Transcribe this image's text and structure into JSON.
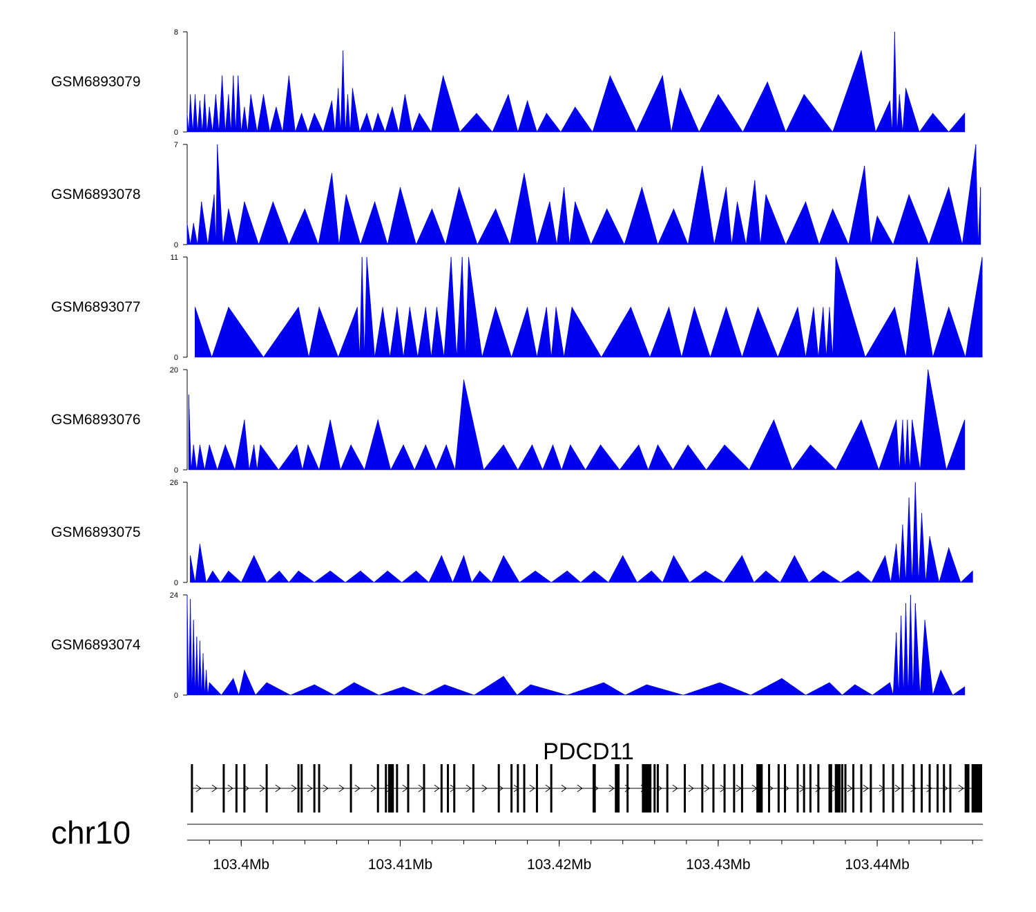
{
  "chart_data": {
    "type": "area",
    "title": "",
    "chromosome": "chr10",
    "region_mb": [
      103.3966,
      103.4466
    ],
    "xlabel": "",
    "x_ticks": [
      103.4,
      103.41,
      103.42,
      103.43,
      103.44
    ],
    "x_tick_labels": [
      "103.4Mb",
      "103.41Mb",
      "103.42Mb",
      "103.43Mb",
      "103.44Mb"
    ],
    "series_color": "#0000ee",
    "tracks": [
      {
        "name": "GSM6893079",
        "ymax": 8,
        "ymin": 0,
        "ymax_label": "8",
        "ymin_label": "0",
        "peaks_mb": [
          103.3966,
          103.3968,
          103.3971,
          103.3974,
          103.3977,
          103.398,
          103.3984,
          103.3988,
          103.3992,
          103.3995,
          103.3998,
          103.4002,
          103.4006,
          103.4014,
          103.4022,
          103.403,
          103.4038,
          103.4046,
          103.4057,
          103.4061,
          103.4064,
          103.4067,
          103.407,
          103.4079,
          103.4086,
          103.4095,
          103.4103,
          103.4112,
          103.4127,
          103.4148,
          103.4168,
          103.418,
          103.4192,
          103.421,
          103.4232,
          103.4265,
          103.4276,
          103.43,
          103.4331,
          103.4354,
          103.439,
          103.4408,
          103.4411,
          103.4414,
          103.4418,
          103.4435,
          103.4455
        ],
        "peak_values": [
          1.5,
          3,
          3,
          2.5,
          3,
          2,
          3,
          4.5,
          3,
          4.5,
          4.5,
          2,
          3,
          3,
          2,
          4.5,
          1.5,
          1.5,
          2.5,
          3.5,
          6.5,
          3,
          3.5,
          1.5,
          1.5,
          2,
          3,
          1.5,
          4.5,
          1.5,
          3,
          2.5,
          1.5,
          2,
          4.5,
          4.5,
          3.5,
          3,
          4,
          3,
          6.5,
          2.5,
          8,
          3,
          3.5,
          1.5,
          1.5
        ]
      },
      {
        "name": "GSM6893078",
        "ymax": 7,
        "ymin": 0,
        "ymax_label": "7",
        "ymin_label": "0",
        "peaks_mb": [
          103.3966,
          103.397,
          103.3975,
          103.3983,
          103.3985,
          103.3992,
          103.4002,
          103.402,
          103.404,
          103.4057,
          103.4066,
          103.4084,
          103.41,
          103.412,
          103.4137,
          103.416,
          103.4178,
          103.4194,
          103.4203,
          103.421,
          103.423,
          103.4252,
          103.4272,
          103.429,
          103.4305,
          103.4312,
          103.4323,
          103.433,
          103.4355,
          103.4372,
          103.4392,
          103.44,
          103.442,
          103.4445,
          103.4462,
          103.4465
        ],
        "peak_values": [
          1.5,
          1.5,
          3,
          3.5,
          7,
          2.5,
          3,
          3,
          2.5,
          5,
          3.5,
          3,
          4,
          2.5,
          4,
          2.5,
          5,
          3,
          4,
          3,
          2.5,
          4,
          2.5,
          5.5,
          4,
          3,
          4.5,
          3.5,
          3,
          2.5,
          5.5,
          2,
          3.5,
          4,
          7,
          4
        ]
      },
      {
        "name": "GSM6893077",
        "ymax": 11,
        "ymin": 0,
        "ymax_label": "11",
        "ymin_label": "0",
        "peaks_mb": [
          103.3971,
          103.3992,
          103.4036,
          103.4049,
          103.4073,
          103.4076,
          103.4079,
          103.4089,
          103.4098,
          103.4106,
          103.4116,
          103.4123,
          103.4132,
          103.4139,
          103.4143,
          103.416,
          103.418,
          103.4192,
          103.4198,
          103.4208,
          103.4245,
          103.4269,
          103.4285,
          103.4305,
          103.4325,
          103.435,
          103.436,
          103.4366,
          103.437,
          103.4374,
          103.4411,
          103.4425,
          103.4445,
          103.4466
        ],
        "peak_values": [
          5.5,
          5.5,
          5.5,
          5.5,
          5.5,
          11,
          11,
          5.5,
          5.5,
          5.5,
          5.5,
          5.5,
          11,
          11,
          11,
          5.5,
          5.5,
          5.5,
          5.5,
          5.5,
          5.5,
          5.5,
          5.5,
          5.5,
          5.5,
          5.5,
          5.5,
          5.5,
          5.5,
          11,
          5.5,
          11,
          5.5,
          11
        ]
      },
      {
        "name": "GSM6893076",
        "ymax": 20,
        "ymin": 0,
        "ymax_label": "20",
        "ymin_label": "0",
        "peaks_mb": [
          103.3967,
          103.397,
          103.3974,
          103.398,
          103.399,
          103.4002,
          103.4008,
          103.4012,
          103.4035,
          103.4042,
          103.4056,
          103.4069,
          103.4086,
          103.4102,
          103.4116,
          103.4129,
          103.414,
          103.4165,
          103.4183,
          103.4196,
          103.4207,
          103.4226,
          103.425,
          103.4262,
          103.4281,
          103.4304,
          103.4335,
          103.4358,
          103.439,
          103.4412,
          103.4416,
          103.4419,
          103.4422,
          103.4432,
          103.4455
        ],
        "peak_values": [
          15,
          5,
          5,
          5,
          5,
          10,
          5,
          5,
          5,
          5,
          10,
          5,
          10,
          5,
          5,
          5,
          18,
          5,
          5,
          5,
          5,
          5,
          5,
          5,
          5,
          5,
          10,
          5,
          10,
          10,
          10,
          10,
          10,
          20,
          10
        ]
      },
      {
        "name": "GSM6893075",
        "ymax": 26,
        "ymin": 0,
        "ymax_label": "26",
        "ymin_label": "0",
        "peaks_mb": [
          103.3968,
          103.3974,
          103.3982,
          103.3992,
          103.4008,
          103.4024,
          103.4036,
          103.4056,
          103.4075,
          103.4092,
          103.411,
          103.4126,
          103.414,
          103.415,
          103.4165,
          103.4185,
          103.4205,
          103.4222,
          103.424,
          103.4258,
          103.4272,
          103.4292,
          103.4315,
          103.433,
          103.4348,
          103.4366,
          103.4388,
          103.4405,
          103.4412,
          103.4416,
          103.442,
          103.4424,
          103.4428,
          103.4433,
          103.4445,
          103.446
        ],
        "peak_values": [
          7,
          10,
          3,
          3,
          7,
          3,
          3,
          3,
          3,
          3,
          3,
          7,
          7,
          3,
          7,
          3,
          3,
          3,
          7,
          3,
          7,
          3,
          7,
          3,
          7,
          3,
          3,
          7,
          10,
          15,
          22,
          26,
          18,
          12,
          9,
          3
        ]
      },
      {
        "name": "GSM6893074",
        "ymax": 24,
        "ymin": 0,
        "ymax_label": "24",
        "ymin_label": "0",
        "peaks_mb": [
          103.3966,
          103.3968,
          103.397,
          103.3972,
          103.3974,
          103.3976,
          103.3978,
          103.398,
          103.3995,
          103.4002,
          103.4016,
          103.4046,
          103.4071,
          103.4102,
          103.4128,
          103.4165,
          103.4182,
          103.4228,
          103.4255,
          103.4301,
          103.434,
          103.437,
          103.4386,
          103.4408,
          103.4412,
          103.4415,
          103.4418,
          103.4421,
          103.4424,
          103.443,
          103.444,
          103.4455
        ],
        "peak_values": [
          24,
          23,
          18,
          14,
          13,
          10,
          6,
          3,
          4,
          6,
          3,
          2.5,
          3,
          2,
          2.5,
          4.5,
          2.5,
          3,
          2.5,
          3,
          4,
          3,
          2.5,
          3,
          15,
          19,
          22,
          24,
          22,
          18,
          6,
          2
        ]
      }
    ],
    "gene_track": {
      "gene_name": "PDCD11",
      "strand": "+",
      "start_mb": 103.3969,
      "end_mb": 103.4466,
      "exons_mb": [
        103.3969,
        103.3989,
        103.3997,
        103.4002,
        103.4016,
        103.4036,
        103.4038,
        103.4046,
        103.4049,
        103.4069,
        103.4086,
        103.4091,
        103.4093,
        103.4098,
        103.4105,
        103.4115,
        103.4126,
        103.413,
        103.4134,
        103.4146,
        103.4162,
        103.417,
        103.4174,
        103.4178,
        103.4186,
        103.4195,
        103.4243,
        103.4255,
        103.426,
        103.4262,
        103.4268,
        103.4279,
        103.429,
        103.4297,
        103.4304,
        103.431,
        103.4315,
        103.4325,
        103.4332,
        103.4338,
        103.4342,
        103.435,
        103.4354,
        103.4358,
        103.4363,
        103.437,
        103.4371,
        103.4374,
        103.4378,
        103.438,
        103.4385,
        103.439,
        103.4396,
        103.4404,
        103.441,
        103.4416,
        103.4423,
        103.4428,
        103.4433,
        103.4438,
        103.4442,
        103.4446,
        103.446,
        103.4464
      ],
      "thick_exons_mb": [
        [
          103.4093,
          103.4096
        ],
        [
          103.4221,
          103.4223
        ],
        [
          103.4235,
          103.4238
        ],
        [
          103.4252,
          103.4258
        ],
        [
          103.4324,
          103.4328
        ],
        [
          103.4374,
          103.4377
        ],
        [
          103.4455,
          103.4458
        ],
        [
          103.446,
          103.4466
        ]
      ]
    }
  }
}
